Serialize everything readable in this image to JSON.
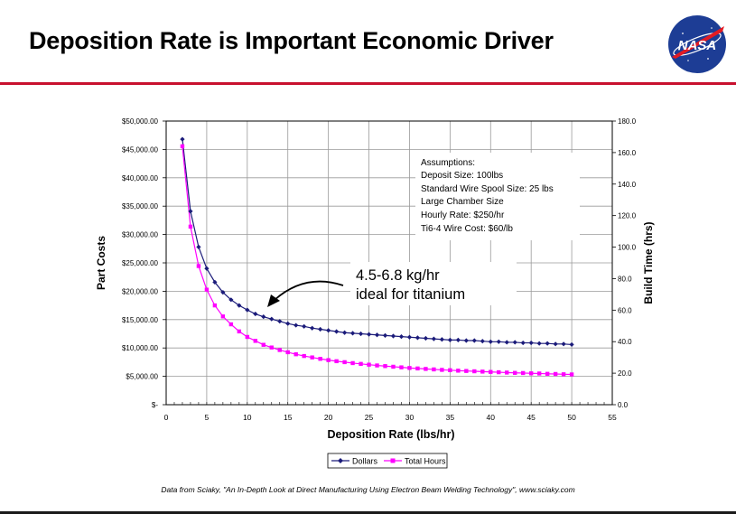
{
  "slide": {
    "title": "Deposition Rate is Important Economic Driver",
    "logo_text": "NASA",
    "caption": "Data from Sciaky, \"An In-Depth Look at Direct Manufacturing Using Electron Beam Welding Technology\", www.sciaky.com"
  },
  "colors": {
    "accent_rule": "#c8102e",
    "dollars": "#1b1b7a",
    "total_hours": "#ff00ff",
    "logo_blue": "#1d3d95"
  },
  "chart_data": {
    "type": "line",
    "xlabel": "Deposition Rate (lbs/hr)",
    "ylabel": "Part Costs",
    "y2label": "Build Time (hrs)",
    "xlim": [
      0,
      55
    ],
    "ylim": [
      0,
      50000
    ],
    "y2lim": [
      0,
      180
    ],
    "grid": true,
    "legend_position": "bottom-center",
    "x_ticks": [
      "0",
      "5",
      "10",
      "15",
      "20",
      "25",
      "30",
      "35",
      "40",
      "45",
      "50",
      "55"
    ],
    "y_ticks": [
      "$-",
      "$5,000.00",
      "$10,000.00",
      "$15,000.00",
      "$20,000.00",
      "$25,000.00",
      "$30,000.00",
      "$35,000.00",
      "$40,000.00",
      "$45,000.00",
      "$50,000.00"
    ],
    "y2_ticks": [
      "0.0",
      "20.0",
      "40.0",
      "60.0",
      "80.0",
      "100.0",
      "120.0",
      "140.0",
      "160.0",
      "180.0"
    ],
    "series": [
      {
        "name": "Dollars",
        "axis": "left",
        "x": [
          2,
          3,
          4,
          5,
          6,
          7,
          8,
          9,
          10,
          11,
          12,
          13,
          14,
          15,
          16,
          17,
          18,
          19,
          20,
          21,
          22,
          23,
          24,
          25,
          26,
          27,
          28,
          29,
          30,
          31,
          32,
          33,
          34,
          35,
          36,
          37,
          38,
          39,
          40,
          41,
          42,
          43,
          44,
          45,
          46,
          47,
          48,
          49,
          50
        ],
        "values": [
          46800,
          34100,
          27800,
          24000,
          21600,
          19800,
          18500,
          17500,
          16700,
          16000,
          15500,
          15100,
          14700,
          14300,
          14000,
          13800,
          13500,
          13300,
          13100,
          12900,
          12700,
          12600,
          12500,
          12400,
          12300,
          12200,
          12100,
          12000,
          11900,
          11800,
          11700,
          11600,
          11500,
          11400,
          11400,
          11300,
          11300,
          11200,
          11100,
          11100,
          11000,
          11000,
          10900,
          10900,
          10800,
          10800,
          10700,
          10700,
          10600
        ]
      },
      {
        "name": "Total Hours",
        "axis": "right",
        "x": [
          2,
          3,
          4,
          5,
          6,
          7,
          8,
          9,
          10,
          11,
          12,
          13,
          14,
          15,
          16,
          17,
          18,
          19,
          20,
          21,
          22,
          23,
          24,
          25,
          26,
          27,
          28,
          29,
          30,
          31,
          32,
          33,
          34,
          35,
          36,
          37,
          38,
          39,
          40,
          41,
          42,
          43,
          44,
          45,
          46,
          47,
          48,
          49,
          50
        ],
        "values": [
          164,
          113,
          88,
          73,
          63,
          56,
          51,
          46.5,
          43,
          40.5,
          38,
          36.3,
          34.7,
          33.3,
          32,
          30.9,
          30,
          29.1,
          28.3,
          27.6,
          27,
          26.4,
          25.9,
          25.4,
          24.9,
          24.5,
          24.1,
          23.7,
          23.3,
          23,
          22.7,
          22.4,
          22.1,
          21.9,
          21.6,
          21.4,
          21.2,
          21,
          20.8,
          20.6,
          20.4,
          20.2,
          20.1,
          19.9,
          19.8,
          19.6,
          19.5,
          19.3,
          19.2
        ]
      }
    ],
    "assumptions": [
      "Assumptions:",
      "Deposit Size: 100lbs",
      "Standard Wire Spool Size: 25 lbs",
      "Large Chamber Size",
      "Hourly Rate: $250/hr",
      "Ti6-4 Wire Cost: $60/lb"
    ],
    "annotation": [
      "4.5-6.8 kg/hr",
      "ideal for titanium"
    ]
  }
}
